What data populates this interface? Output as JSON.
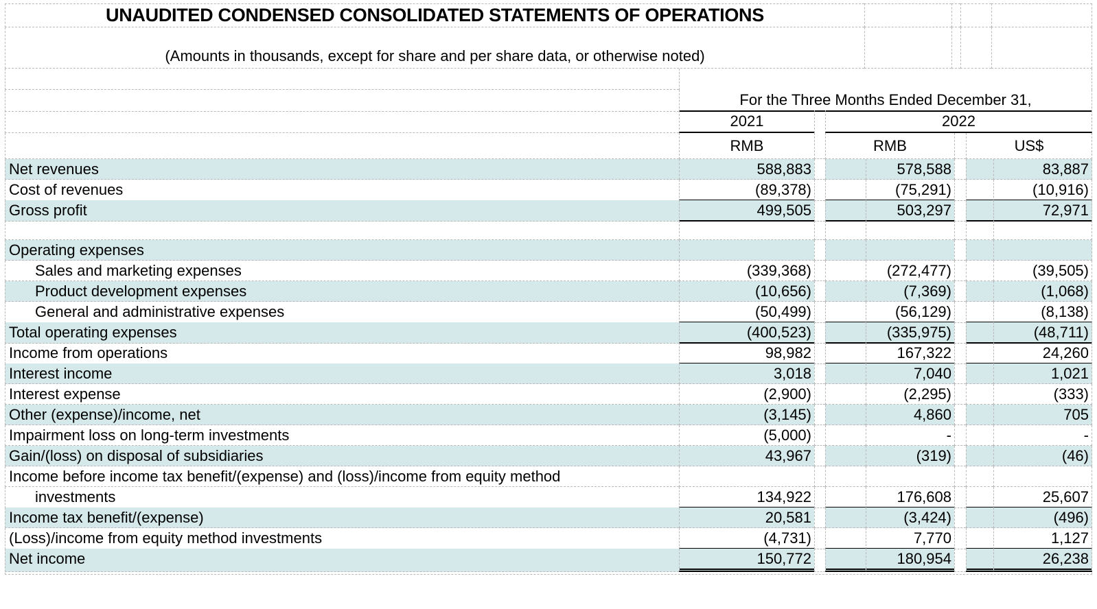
{
  "title": "UNAUDITED CONDENSED CONSOLIDATED STATEMENTS OF OPERATIONS",
  "subtitle": "(Amounts in thousands, except for share and per share data, or otherwise noted)",
  "period_header": "For the Three Months Ended December 31,",
  "columns": {
    "year_2021": "2021",
    "year_2022": "2022",
    "currency_2021_rmb": "RMB",
    "currency_2022_rmb": "RMB",
    "currency_2022_usd": "US$"
  },
  "colors": {
    "row_band": "#d5e8ea",
    "gridline": "#b9b9b9"
  },
  "rows": [
    {
      "label": "Net revenues",
      "indent": 0,
      "shaded": true,
      "v2021": "588,883",
      "v2022_rmb": "578,588",
      "v2022_usd": "83,887",
      "underline": "none"
    },
    {
      "label": "Cost of revenues",
      "indent": 0,
      "shaded": false,
      "v2021": "(89,378)",
      "v2022_rmb": "(75,291)",
      "v2022_usd": "(10,916)",
      "underline": "single"
    },
    {
      "label": "Gross profit",
      "indent": 0,
      "shaded": true,
      "v2021": "499,505",
      "v2022_rmb": "503,297",
      "v2022_usd": "72,971",
      "underline": "single"
    },
    {
      "label": "",
      "indent": 0,
      "shaded": false,
      "blank": true,
      "underline": "none"
    },
    {
      "label": "Operating expenses",
      "indent": 0,
      "shaded": true,
      "underline": "none"
    },
    {
      "label": "Sales and marketing expenses",
      "indent": 1,
      "shaded": false,
      "v2021": "(339,368)",
      "v2022_rmb": "(272,477)",
      "v2022_usd": "(39,505)",
      "underline": "none"
    },
    {
      "label": "Product development expenses",
      "indent": 1,
      "shaded": true,
      "v2021": "(10,656)",
      "v2022_rmb": "(7,369)",
      "v2022_usd": "(1,068)",
      "underline": "none"
    },
    {
      "label": "General and administrative expenses",
      "indent": 1,
      "shaded": false,
      "v2021": "(50,499)",
      "v2022_rmb": "(56,129)",
      "v2022_usd": "(8,138)",
      "underline": "single"
    },
    {
      "label": "Total operating expenses",
      "indent": 0,
      "shaded": true,
      "v2021": "(400,523)",
      "v2022_rmb": "(335,975)",
      "v2022_usd": "(48,711)",
      "underline": "single"
    },
    {
      "label": "Income from operations",
      "indent": 0,
      "shaded": false,
      "v2021": "98,982",
      "v2022_rmb": "167,322",
      "v2022_usd": "24,260",
      "underline": "single"
    },
    {
      "label": "Interest income",
      "indent": 0,
      "shaded": true,
      "v2021": "3,018",
      "v2022_rmb": "7,040",
      "v2022_usd": "1,021",
      "underline": "none"
    },
    {
      "label": "Interest expense",
      "indent": 0,
      "shaded": false,
      "v2021": "(2,900)",
      "v2022_rmb": "(2,295)",
      "v2022_usd": "(333)",
      "underline": "none"
    },
    {
      "label": "Other (expense)/income, net",
      "indent": 0,
      "shaded": true,
      "v2021": "(3,145)",
      "v2022_rmb": "4,860",
      "v2022_usd": "705",
      "underline": "none"
    },
    {
      "label": "Impairment loss on long-term investments",
      "indent": 0,
      "shaded": false,
      "v2021": "(5,000)",
      "v2022_rmb": "-",
      "v2022_usd": "-",
      "underline": "none"
    },
    {
      "label": "Gain/(loss) on disposal of subsidiaries",
      "indent": 0,
      "shaded": true,
      "v2021": "43,967",
      "v2022_rmb": "(319)",
      "v2022_usd": "(46)",
      "underline": "none"
    },
    {
      "label": "Income before income tax benefit/(expense) and (loss)/income from equity method",
      "indent": 0,
      "shaded": false,
      "underline": "none"
    },
    {
      "label": "investments",
      "indent": 1,
      "shaded": false,
      "v2021": "134,922",
      "v2022_rmb": "176,608",
      "v2022_usd": "25,607",
      "underline": "single"
    },
    {
      "label": "Income tax benefit/(expense)",
      "indent": 0,
      "shaded": true,
      "v2021": "20,581",
      "v2022_rmb": "(3,424)",
      "v2022_usd": "(496)",
      "underline": "none"
    },
    {
      "label": "(Loss)/income from equity method investments",
      "indent": 0,
      "shaded": false,
      "v2021": "(4,731)",
      "v2022_rmb": "7,770",
      "v2022_usd": "1,127",
      "underline": "single"
    },
    {
      "label": "Net income",
      "indent": 0,
      "shaded": true,
      "v2021": "150,772",
      "v2022_rmb": "180,954",
      "v2022_usd": "26,238",
      "underline": "double"
    }
  ]
}
